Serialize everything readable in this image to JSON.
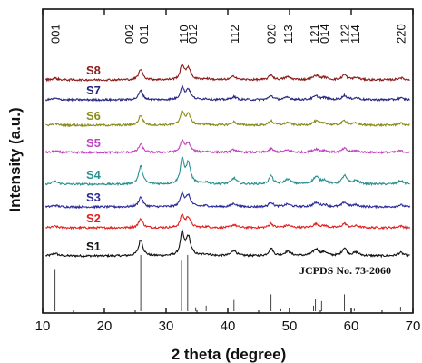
{
  "chart_data": {
    "type": "line",
    "title": "",
    "xlabel": "2 theta (degree)",
    "ylabel": "Intensity (a.u.)",
    "xlim": [
      10,
      70
    ],
    "x_ticks": [
      10,
      20,
      30,
      40,
      50,
      60,
      70
    ],
    "grid": false,
    "legend": "none",
    "peak_labels": [
      {
        "label": "001",
        "x": 12.0
      },
      {
        "label": "002",
        "x": 24.0
      },
      {
        "label": "011",
        "x": 26.3
      },
      {
        "label": "110",
        "x": 32.8
      },
      {
        "label": "012",
        "x": 34.3
      },
      {
        "label": "112",
        "x": 41.0
      },
      {
        "label": "020",
        "x": 47.0
      },
      {
        "label": "113",
        "x": 49.7
      },
      {
        "label": "121",
        "x": 54.0
      },
      {
        "label": "014",
        "x": 55.6
      },
      {
        "label": "122",
        "x": 58.9
      },
      {
        "label": "114",
        "x": 60.6
      },
      {
        "label": "220",
        "x": 68.0
      }
    ],
    "reference": {
      "label": "JCPDS No. 73-2060",
      "lines": [
        {
          "x": 12.0,
          "h": 0.75
        },
        {
          "x": 25.9,
          "h": 1.0
        },
        {
          "x": 32.5,
          "h": 0.9
        },
        {
          "x": 33.5,
          "h": 1.0
        },
        {
          "x": 34.8,
          "h": 0.07
        },
        {
          "x": 36.5,
          "h": 0.1
        },
        {
          "x": 41.0,
          "h": 0.2
        },
        {
          "x": 47.0,
          "h": 0.3
        },
        {
          "x": 48.6,
          "h": 0.05
        },
        {
          "x": 53.9,
          "h": 0.1
        },
        {
          "x": 54.2,
          "h": 0.22
        },
        {
          "x": 55.2,
          "h": 0.18
        },
        {
          "x": 58.9,
          "h": 0.3
        },
        {
          "x": 60.5,
          "h": 0.06
        },
        {
          "x": 68.0,
          "h": 0.08
        }
      ]
    },
    "series": [
      {
        "name": "S1",
        "color": "#111111",
        "amp": 1.0
      },
      {
        "name": "S2",
        "color": "#e02020",
        "amp": 0.55
      },
      {
        "name": "S3",
        "color": "#2a2a9a",
        "amp": 0.6
      },
      {
        "name": "S4",
        "color": "#2a8f8f",
        "amp": 1.1
      },
      {
        "name": "S5",
        "color": "#c040c0",
        "amp": 0.5
      },
      {
        "name": "S6",
        "color": "#8a8a1a",
        "amp": 0.6
      },
      {
        "name": "S7",
        "color": "#262680",
        "amp": 0.55
      },
      {
        "name": "S8",
        "color": "#8b1a1a",
        "amp": 0.65
      }
    ],
    "peaks": [
      {
        "x": 12.0,
        "h": 0.12,
        "w": 0.5
      },
      {
        "x": 25.9,
        "h": 0.75,
        "w": 0.4
      },
      {
        "x": 32.6,
        "h": 1.0,
        "w": 0.35
      },
      {
        "x": 33.6,
        "h": 0.85,
        "w": 0.45
      },
      {
        "x": 36.5,
        "h": 0.08,
        "w": 0.6
      },
      {
        "x": 41.0,
        "h": 0.25,
        "w": 0.5
      },
      {
        "x": 47.0,
        "h": 0.35,
        "w": 0.4
      },
      {
        "x": 49.7,
        "h": 0.2,
        "w": 0.6
      },
      {
        "x": 54.3,
        "h": 0.3,
        "w": 0.6
      },
      {
        "x": 55.7,
        "h": 0.15,
        "w": 0.5
      },
      {
        "x": 58.9,
        "h": 0.35,
        "w": 0.45
      },
      {
        "x": 60.8,
        "h": 0.15,
        "w": 0.6
      },
      {
        "x": 68.0,
        "h": 0.15,
        "w": 0.5
      }
    ]
  }
}
